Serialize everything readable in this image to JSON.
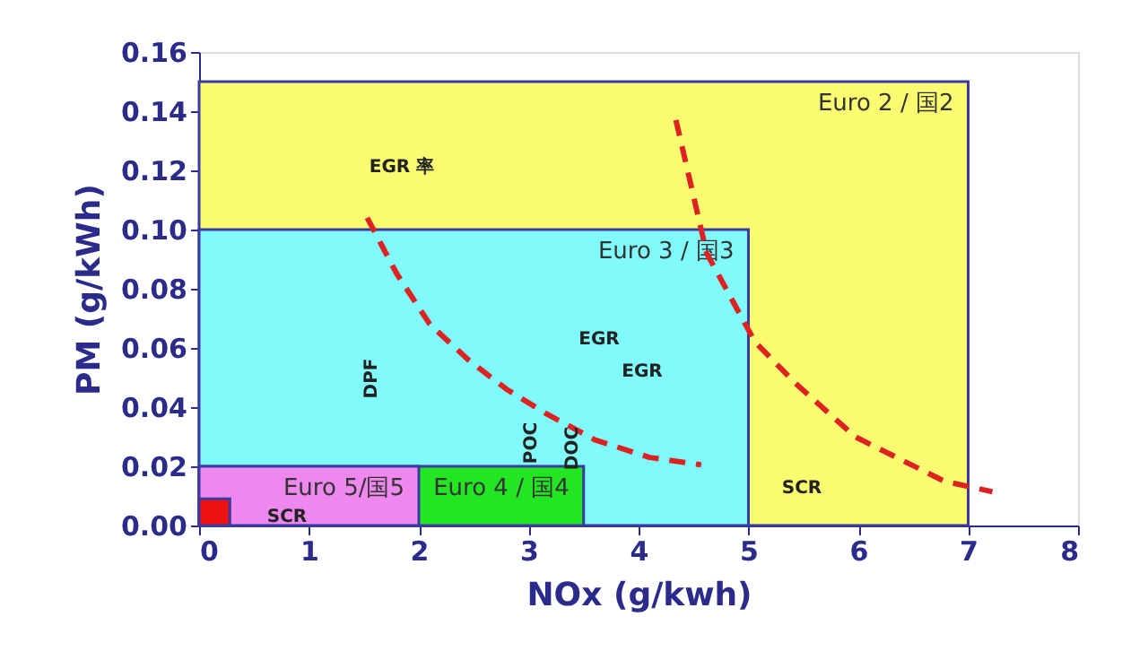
{
  "chart_data": {
    "type": "area",
    "xlabel": "NOx (g/kwh)",
    "ylabel": "PM (g/kWh)",
    "xlim": [
      0,
      8
    ],
    "xticks": [
      0,
      1,
      2,
      3,
      4,
      5,
      6,
      7,
      8
    ],
    "ylim": [
      0,
      0.16
    ],
    "yticks": [
      {
        "value": 0,
        "label": "0.00"
      },
      0.02,
      0.04,
      0.06,
      0.08,
      {
        "value": 0.1,
        "label": "0.10"
      },
      0.12,
      0.14,
      0.16
    ],
    "grid": false,
    "legend": false,
    "series": [
      {
        "name": "Euro 2 / 国2",
        "color": "#fbfb72",
        "x": [
          0,
          7
        ],
        "values": [
          0.15,
          0.15
        ]
      },
      {
        "name": "Euro 3 / 国3",
        "color": "#80fafa",
        "x": [
          0,
          5
        ],
        "values": [
          0.1,
          0.1
        ]
      },
      {
        "name": "Euro 4 / 国4",
        "color": "#22e622",
        "x": [
          0,
          3.5
        ],
        "values": [
          0.02,
          0.02
        ]
      },
      {
        "name": "Euro 5/国5",
        "color": "#ee88ee",
        "x": [
          0,
          2
        ],
        "values": [
          0.02,
          0.02
        ]
      },
      {
        "color": "#ee1111",
        "x": [
          0,
          0.28
        ],
        "values": [
          0.009,
          0.009
        ]
      },
      {
        "type": "line",
        "color": "#dd2222",
        "line_style": "dashed",
        "x": [
          1.53,
          1.8,
          2.1,
          2.45,
          2.8,
          3.15,
          3.6,
          4.1,
          4.57
        ],
        "values": [
          0.104,
          0.085,
          0.068,
          0.056,
          0.046,
          0.038,
          0.029,
          0.023,
          0.0205
        ]
      },
      {
        "type": "line",
        "color": "#dd2222",
        "line_style": "dashed",
        "x": [
          4.34,
          4.62,
          5.06,
          5.43,
          5.97,
          6.78,
          7.22
        ],
        "values": [
          0.137,
          0.092,
          0.062,
          0.048,
          0.03,
          0.015,
          0.0114
        ]
      }
    ],
    "annotations": [
      "EGR 率",
      "DPF",
      "SCR",
      "SCR",
      "EGR",
      "EGR",
      "POC",
      "DOC"
    ]
  }
}
